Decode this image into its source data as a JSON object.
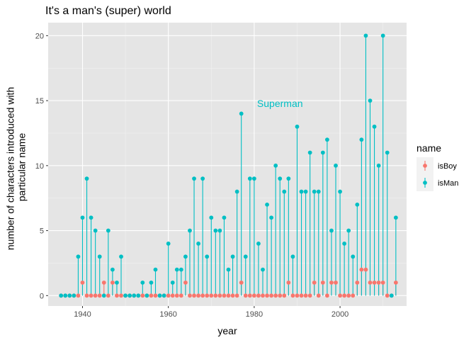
{
  "chart_data": {
    "type": "lollipop",
    "title": "It's a man's (super) world",
    "xlabel": "year",
    "ylabel": "number of characters introduced with particular name",
    "ylabel_lines": [
      "number of characters introduced with",
      "particular name"
    ],
    "xlim": [
      1932,
      2015.5
    ],
    "ylim": [
      -0.8,
      21.0
    ],
    "x_ticks": [
      1940,
      1960,
      1980,
      2000
    ],
    "y_ticks": [
      0,
      5,
      10,
      15,
      20
    ],
    "grid": true,
    "background": "#e5e5e5",
    "legend": {
      "title": "name",
      "position": "right"
    },
    "annotation": {
      "text": "Superman",
      "x": 1986,
      "y": 14.8,
      "color": "#00bfc4"
    },
    "series": [
      {
        "name": "isBoy",
        "color": "#f8766d",
        "points": [
          [
            1935,
            0
          ],
          [
            1936,
            0
          ],
          [
            1937,
            0
          ],
          [
            1938,
            0
          ],
          [
            1939,
            0
          ],
          [
            1940,
            1
          ],
          [
            1941,
            0
          ],
          [
            1942,
            0
          ],
          [
            1943,
            0
          ],
          [
            1944,
            0
          ],
          [
            1945,
            1
          ],
          [
            1946,
            0
          ],
          [
            1947,
            1
          ],
          [
            1948,
            0
          ],
          [
            1949,
            0
          ],
          [
            1950,
            0
          ],
          [
            1951,
            0
          ],
          [
            1952,
            0
          ],
          [
            1953,
            0
          ],
          [
            1954,
            0
          ],
          [
            1955,
            0
          ],
          [
            1956,
            0
          ],
          [
            1957,
            0
          ],
          [
            1958,
            0
          ],
          [
            1959,
            0
          ],
          [
            1960,
            0
          ],
          [
            1961,
            0
          ],
          [
            1962,
            0
          ],
          [
            1963,
            0
          ],
          [
            1964,
            1
          ],
          [
            1965,
            0
          ],
          [
            1966,
            0
          ],
          [
            1967,
            0
          ],
          [
            1968,
            0
          ],
          [
            1969,
            0
          ],
          [
            1970,
            0
          ],
          [
            1971,
            0
          ],
          [
            1972,
            0
          ],
          [
            1973,
            0
          ],
          [
            1974,
            0
          ],
          [
            1975,
            0
          ],
          [
            1976,
            0
          ],
          [
            1977,
            1
          ],
          [
            1978,
            0
          ],
          [
            1979,
            0
          ],
          [
            1980,
            0
          ],
          [
            1981,
            0
          ],
          [
            1982,
            0
          ],
          [
            1983,
            0
          ],
          [
            1984,
            0
          ],
          [
            1985,
            0
          ],
          [
            1986,
            0
          ],
          [
            1987,
            0
          ],
          [
            1988,
            1
          ],
          [
            1989,
            0
          ],
          [
            1990,
            0
          ],
          [
            1991,
            0
          ],
          [
            1992,
            0
          ],
          [
            1993,
            0
          ],
          [
            1994,
            1
          ],
          [
            1995,
            0
          ],
          [
            1996,
            1
          ],
          [
            1997,
            0
          ],
          [
            1998,
            1
          ],
          [
            1999,
            1
          ],
          [
            2000,
            0
          ],
          [
            2001,
            0
          ],
          [
            2002,
            0
          ],
          [
            2003,
            0
          ],
          [
            2004,
            1
          ],
          [
            2005,
            2
          ],
          [
            2006,
            2
          ],
          [
            2007,
            1
          ],
          [
            2008,
            1
          ],
          [
            2009,
            1
          ],
          [
            2010,
            1
          ],
          [
            2011,
            0
          ],
          [
            2012,
            0
          ],
          [
            2013,
            1
          ]
        ]
      },
      {
        "name": "isMan",
        "color": "#00bfc4",
        "points": [
          [
            1935,
            0
          ],
          [
            1936,
            0
          ],
          [
            1937,
            0
          ],
          [
            1938,
            0
          ],
          [
            1939,
            3
          ],
          [
            1940,
            6
          ],
          [
            1941,
            9
          ],
          [
            1942,
            6
          ],
          [
            1943,
            5
          ],
          [
            1944,
            3
          ],
          [
            1945,
            0
          ],
          [
            1946,
            5
          ],
          [
            1947,
            2
          ],
          [
            1948,
            1
          ],
          [
            1949,
            3
          ],
          [
            1950,
            0
          ],
          [
            1951,
            0
          ],
          [
            1952,
            0
          ],
          [
            1953,
            0
          ],
          [
            1954,
            1
          ],
          [
            1955,
            0
          ],
          [
            1956,
            1
          ],
          [
            1957,
            2
          ],
          [
            1958,
            0
          ],
          [
            1959,
            0
          ],
          [
            1960,
            4
          ],
          [
            1961,
            1
          ],
          [
            1962,
            2
          ],
          [
            1963,
            2
          ],
          [
            1964,
            3
          ],
          [
            1965,
            5
          ],
          [
            1966,
            9
          ],
          [
            1967,
            4
          ],
          [
            1968,
            9
          ],
          [
            1969,
            3
          ],
          [
            1970,
            6
          ],
          [
            1971,
            5
          ],
          [
            1972,
            5
          ],
          [
            1973,
            6
          ],
          [
            1974,
            2
          ],
          [
            1975,
            3
          ],
          [
            1976,
            8
          ],
          [
            1977,
            14
          ],
          [
            1978,
            3
          ],
          [
            1979,
            9
          ],
          [
            1980,
            9
          ],
          [
            1981,
            4
          ],
          [
            1982,
            2
          ],
          [
            1983,
            7
          ],
          [
            1984,
            6
          ],
          [
            1985,
            10
          ],
          [
            1986,
            9
          ],
          [
            1987,
            8
          ],
          [
            1988,
            9
          ],
          [
            1989,
            3
          ],
          [
            1990,
            13
          ],
          [
            1991,
            8
          ],
          [
            1992,
            8
          ],
          [
            1993,
            11
          ],
          [
            1994,
            8
          ],
          [
            1995,
            8
          ],
          [
            1996,
            11
          ],
          [
            1997,
            12
          ],
          [
            1998,
            5
          ],
          [
            1999,
            10
          ],
          [
            2000,
            8
          ],
          [
            2001,
            4
          ],
          [
            2002,
            5
          ],
          [
            2003,
            3
          ],
          [
            2004,
            7
          ],
          [
            2005,
            12
          ],
          [
            2006,
            20
          ],
          [
            2007,
            15
          ],
          [
            2008,
            13
          ],
          [
            2009,
            10
          ],
          [
            2010,
            20
          ],
          [
            2011,
            11
          ],
          [
            2012,
            0
          ],
          [
            2013,
            6
          ]
        ]
      }
    ]
  }
}
